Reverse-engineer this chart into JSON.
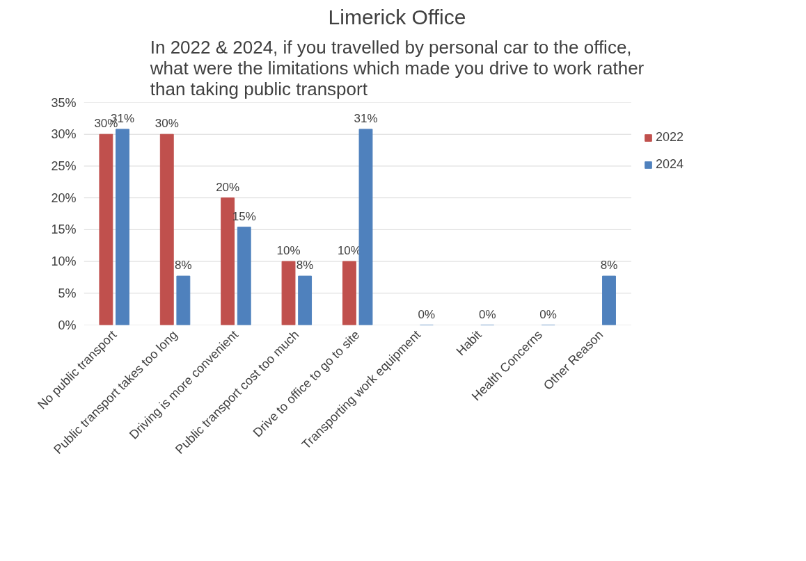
{
  "chart_data": {
    "type": "bar",
    "title": "Limerick Office",
    "subtitle": "In 2022 & 2024, if you travelled by personal car to the office, what were the limitations which made you drive to work rather than taking public transport",
    "categories": [
      "No public transport",
      "Public transport takes too long",
      "Driving is more convenient",
      "Public transport cost too much",
      "Drive to office to go to site",
      "Transporting work equipment",
      "Habit",
      "Health Concerns",
      "Other Reason"
    ],
    "series": [
      {
        "name": "2022",
        "color": "#c0504d",
        "values": [
          30,
          30,
          20,
          10,
          10,
          null,
          null,
          null,
          null
        ],
        "value_labels": [
          "30%",
          "30%",
          "20%",
          "10%",
          "10%",
          null,
          null,
          null,
          null
        ]
      },
      {
        "name": "2024",
        "color": "#4f81bd",
        "values": [
          30.8,
          7.7,
          15.4,
          7.7,
          30.8,
          0,
          0,
          0,
          7.7
        ],
        "value_labels": [
          "31%",
          "8%",
          "15%",
          "8%",
          "31%",
          "0%",
          "0%",
          "0%",
          "8%"
        ]
      }
    ],
    "ylim": [
      0,
      35
    ],
    "yticks": [
      {
        "value": 0,
        "label": "0%"
      },
      {
        "value": 5,
        "label": "5%"
      },
      {
        "value": 10,
        "label": "10%"
      },
      {
        "value": 15,
        "label": "15%"
      },
      {
        "value": 20,
        "label": "20%"
      },
      {
        "value": 25,
        "label": "25%"
      },
      {
        "value": 30,
        "label": "30%"
      },
      {
        "value": 35,
        "label": "35%"
      }
    ],
    "grid": "y",
    "legend": "right"
  }
}
